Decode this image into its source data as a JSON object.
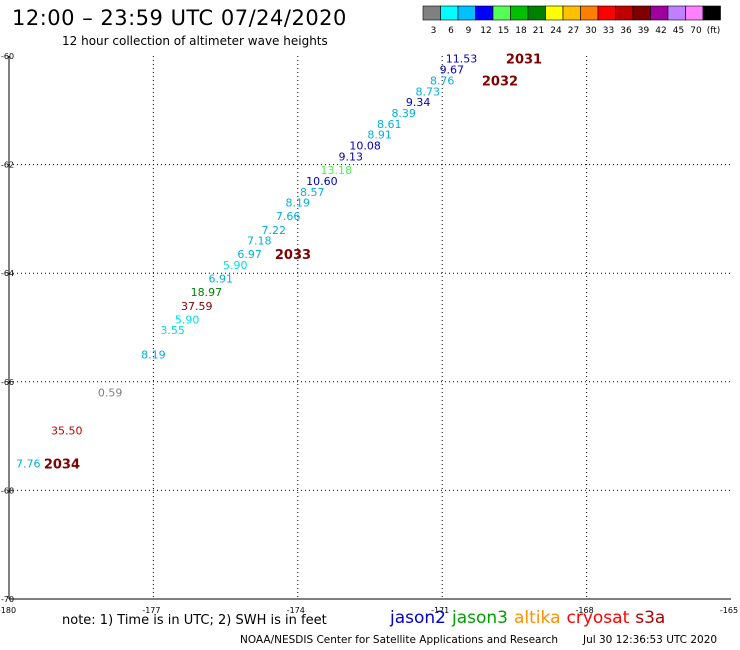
{
  "title": "12:00 – 23:59 UTC 07/24/2020",
  "subtitle": "12 hour collection of altimeter wave heights",
  "colorbar": {
    "colors": [
      "#808080",
      "#00ffff",
      "#00c0ff",
      "#0000ff",
      "#55ff55",
      "#00c000",
      "#008000",
      "#ffff00",
      "#ffc000",
      "#ff8000",
      "#ff0000",
      "#c00000",
      "#800000",
      "#a000a0",
      "#c080ff",
      "#ff80ff",
      "#000000"
    ],
    "labels": [
      "3",
      "6",
      "9",
      "12",
      "15",
      "18",
      "21",
      "24",
      "27",
      "30",
      "33",
      "36",
      "39",
      "42",
      "45",
      "70",
      "(ft)"
    ]
  },
  "chart_data": {
    "type": "scatter",
    "title": "12:00 – 23:59 UTC 07/24/2020",
    "subtitle": "12 hour collection of altimeter wave heights",
    "xlim": [
      -180,
      -165
    ],
    "ylim": [
      -70,
      -60
    ],
    "x_ticks": [
      "-180",
      "-177",
      "-174",
      "-171",
      "-168",
      "-165"
    ],
    "y_ticks": [
      "-60",
      "-62",
      "-64",
      "-66",
      "-68",
      "-70"
    ],
    "grid": true,
    "points": [
      {
        "lon": -170.6,
        "lat": -60.05,
        "label": "11.53",
        "color": "#0000c0"
      },
      {
        "lon": -170.8,
        "lat": -60.25,
        "label": "9.67",
        "color": "#0000c0"
      },
      {
        "lon": -171.0,
        "lat": -60.45,
        "label": "8.76",
        "color": "#00b0e0"
      },
      {
        "lon": -171.3,
        "lat": -60.65,
        "label": "8.73",
        "color": "#00b0e0"
      },
      {
        "lon": -171.5,
        "lat": -60.85,
        "label": "9.34",
        "color": "#0000c0"
      },
      {
        "lon": -171.8,
        "lat": -61.05,
        "label": "8.39",
        "color": "#00b0e0"
      },
      {
        "lon": -172.1,
        "lat": -61.25,
        "label": "8.61",
        "color": "#00b0e0"
      },
      {
        "lon": -172.3,
        "lat": -61.45,
        "label": "8.91",
        "color": "#00b0e0"
      },
      {
        "lon": -172.6,
        "lat": -61.65,
        "label": "10.08",
        "color": "#0000c0"
      },
      {
        "lon": -172.9,
        "lat": -61.85,
        "label": "9.13",
        "color": "#0000c0"
      },
      {
        "lon": -173.2,
        "lat": -62.1,
        "label": "13.18",
        "color": "#55ee55"
      },
      {
        "lon": -173.5,
        "lat": -62.3,
        "label": "10.60",
        "color": "#0000c0"
      },
      {
        "lon": -173.7,
        "lat": -62.5,
        "label": "8.57",
        "color": "#00b0e0"
      },
      {
        "lon": -174.0,
        "lat": -62.7,
        "label": "8.19",
        "color": "#00b0e0"
      },
      {
        "lon": -174.2,
        "lat": -62.95,
        "label": "7.66",
        "color": "#00b0e0"
      },
      {
        "lon": -174.5,
        "lat": -63.2,
        "label": "7.22",
        "color": "#00b0e0"
      },
      {
        "lon": -174.8,
        "lat": -63.4,
        "label": "7.18",
        "color": "#00b0e0"
      },
      {
        "lon": -175.0,
        "lat": -63.65,
        "label": "6.97",
        "color": "#00b0e0"
      },
      {
        "lon": -175.3,
        "lat": -63.85,
        "label": "5.90",
        "color": "#00e0e0"
      },
      {
        "lon": -175.6,
        "lat": -64.1,
        "label": "6.91",
        "color": "#00b0e0"
      },
      {
        "lon": -175.9,
        "lat": -64.35,
        "label": "18.97",
        "color": "#008000"
      },
      {
        "lon": -176.1,
        "lat": -64.6,
        "label": "37.59",
        "color": "#800000"
      },
      {
        "lon": -176.3,
        "lat": -64.85,
        "label": "5.90",
        "color": "#00e0e0"
      },
      {
        "lon": -176.6,
        "lat": -65.05,
        "label": "3.55",
        "color": "#00e0e0"
      },
      {
        "lon": -177.0,
        "lat": -65.5,
        "label": "8.19",
        "color": "#00b0e0"
      },
      {
        "lon": -177.9,
        "lat": -66.2,
        "label": "0.59",
        "color": "#808080"
      },
      {
        "lon": -178.8,
        "lat": -66.9,
        "label": "35.50",
        "color": "#c00000"
      },
      {
        "lon": -179.6,
        "lat": -67.5,
        "label": "7.76",
        "color": "#00b0e0"
      }
    ],
    "time_labels": [
      {
        "lon": -169.3,
        "lat": -60.05,
        "label": "2031"
      },
      {
        "lon": -169.8,
        "lat": -60.45,
        "label": "2032"
      },
      {
        "lon": -174.1,
        "lat": -63.65,
        "label": "2033"
      },
      {
        "lon": -178.9,
        "lat": -67.5,
        "label": "2034"
      }
    ],
    "time_label_color": "#800000"
  },
  "note": "note:  1) Time is in UTC;  2) SWH is in feet",
  "legend": [
    {
      "name": "jason2",
      "color": "#0000d0"
    },
    {
      "name": "jason3",
      "color": "#00a000"
    },
    {
      "name": "altika",
      "color": "#ff9000"
    },
    {
      "name": "cryosat",
      "color": "#ff0000"
    },
    {
      "name": "s3a",
      "color": "#b00000"
    }
  ],
  "credit": "NOAA/NESDIS Center for Satellite Applications and Research",
  "timestamp": "Jul 30 12:36:53 UTC 2020"
}
